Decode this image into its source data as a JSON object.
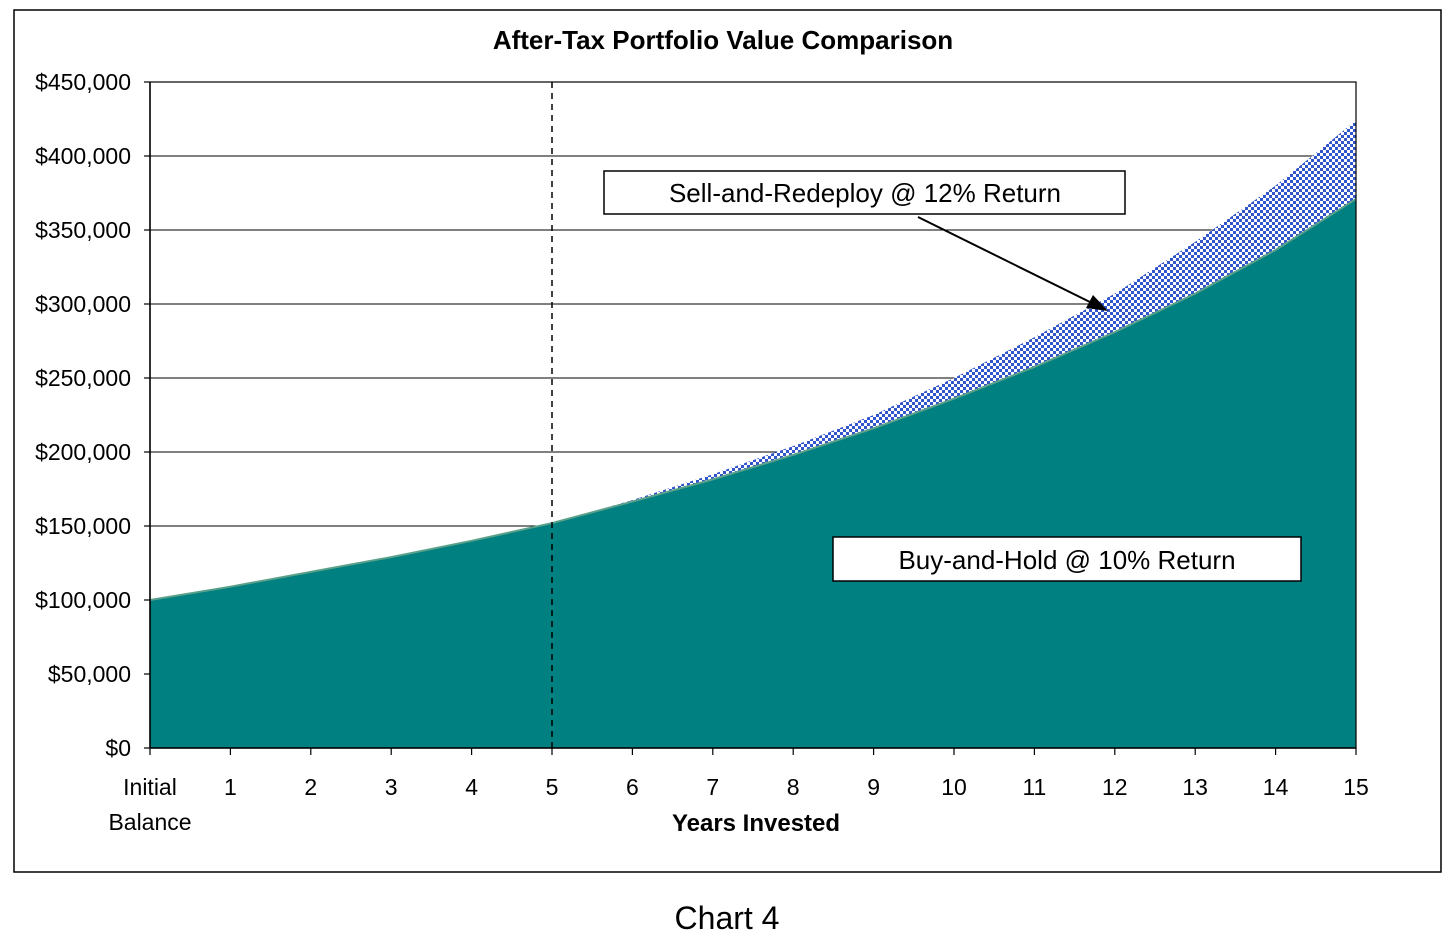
{
  "chart_data": {
    "type": "area",
    "title": "After-Tax Portfolio Value Comparison",
    "xlabel": "Years Invested",
    "ylabel": "",
    "categories": [
      "Initial|Balance",
      "1",
      "2",
      "3",
      "4",
      "5",
      "6",
      "7",
      "8",
      "9",
      "10",
      "11",
      "12",
      "13",
      "14",
      "15"
    ],
    "ylim": [
      0,
      450000
    ],
    "yticks": [
      "$0",
      "$50,000",
      "$100,000",
      "$150,000",
      "$200,000",
      "$250,000",
      "$300,000",
      "$350,000",
      "$400,000",
      "$450,000"
    ],
    "grid": true,
    "series": [
      {
        "name": "Sell-and-Redeploy @ 12% Return",
        "color": "#3355cc",
        "values": [
          100000,
          109000,
          119000,
          129000,
          140000,
          152000,
          167500,
          185000,
          204000,
          225000,
          250000,
          277500,
          307000,
          342000,
          380000,
          424000
        ]
      },
      {
        "name": "Buy-and-Hold @ 10% Return",
        "color": "#008080",
        "values": [
          100000,
          109000,
          119000,
          129000,
          140000,
          152000,
          166500,
          181500,
          198000,
          216000,
          236000,
          257500,
          281000,
          307000,
          336500,
          371000
        ]
      }
    ],
    "annotations": [
      {
        "text": "Sell-and-Redeploy @ 12% Return"
      },
      {
        "text": "Buy-and-Hold @ 10% Return"
      }
    ],
    "reference_line": {
      "x": "5",
      "style": "dashed"
    }
  },
  "caption": "Chart 4"
}
